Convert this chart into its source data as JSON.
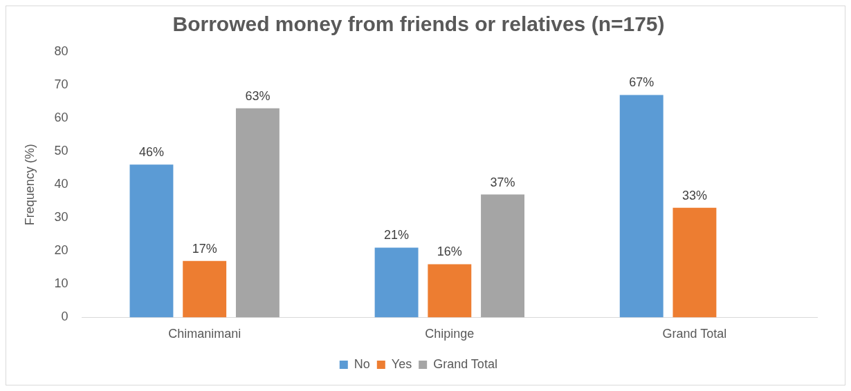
{
  "chart_data": {
    "type": "bar",
    "title": "Borrowed money from friends or relatives (n=175)",
    "ylabel": "Frequency (%)",
    "categories": [
      "Chimanimani",
      "Chipinge",
      "Grand Total"
    ],
    "series": [
      {
        "name": "No",
        "color": "#5b9bd5",
        "values": [
          46,
          21,
          67
        ],
        "value_labels": [
          "46%",
          "21%",
          "67%"
        ]
      },
      {
        "name": "Yes",
        "color": "#ed7d31",
        "values": [
          17,
          16,
          33
        ],
        "value_labels": [
          "17%",
          "16%",
          "33%"
        ]
      },
      {
        "name": "Grand Total",
        "color": "#a5a5a5",
        "values": [
          63,
          37,
          null
        ],
        "value_labels": [
          "63%",
          "37%",
          null
        ]
      }
    ],
    "ylim": [
      0,
      80
    ],
    "yticks": [
      0,
      10,
      20,
      30,
      40,
      50,
      60,
      70,
      80
    ],
    "grid": false,
    "legend": "bottom"
  }
}
